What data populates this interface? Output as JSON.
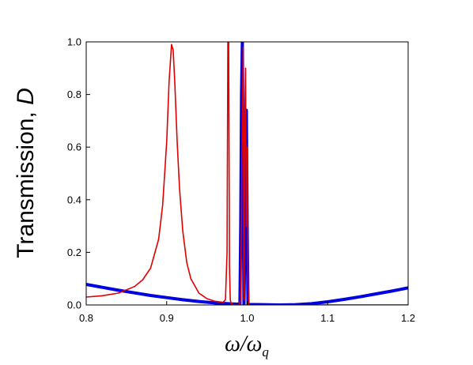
{
  "chart_data": {
    "type": "line",
    "xlabel": "ω/ω",
    "xlabel_subscript": "q",
    "ylabel": "Transmission, ",
    "ylabel_italic": "D",
    "xlim": [
      0.8,
      1.2
    ],
    "ylim": [
      0.0,
      1.0
    ],
    "xticks": [
      "0.8",
      "0.9",
      "1.0",
      "1.1",
      "1.2"
    ],
    "yticks": [
      "0.0",
      "0.2",
      "0.4",
      "0.6",
      "0.8",
      "1.0"
    ],
    "grid": false,
    "series": [
      {
        "color": "#0000e0",
        "stroke": "thick",
        "x": [
          0.8,
          0.82,
          0.84,
          0.86,
          0.88,
          0.9,
          0.92,
          0.94,
          0.96,
          0.98,
          0.99,
          0.991,
          0.992,
          0.993,
          0.994,
          0.995,
          0.996,
          0.997,
          0.998,
          0.999,
          1.0,
          1.001,
          1.002,
          1.02,
          1.04,
          1.06,
          1.08,
          1.1,
          1.12,
          1.14,
          1.16,
          1.18,
          1.2
        ],
        "y": [
          0.078,
          0.067,
          0.056,
          0.046,
          0.036,
          0.028,
          0.02,
          0.013,
          0.008,
          0.004,
          0.003,
          0.003,
          0.3,
          0.8,
          1.0,
          0.5,
          0.003,
          0.2,
          0.62,
          0.74,
          0.3,
          0.002,
          0.002,
          0.001,
          0.0,
          0.001,
          0.005,
          0.012,
          0.021,
          0.031,
          0.042,
          0.053,
          0.065
        ]
      },
      {
        "color": "#e00000",
        "stroke": "thin",
        "x": [
          0.8,
          0.82,
          0.84,
          0.86,
          0.87,
          0.88,
          0.89,
          0.895,
          0.9,
          0.903,
          0.906,
          0.908,
          0.91,
          0.913,
          0.916,
          0.92,
          0.925,
          0.93,
          0.94,
          0.95,
          0.96,
          0.97,
          0.973,
          0.975,
          0.976,
          0.977,
          0.978,
          0.979,
          0.98,
          0.982,
          0.985,
          0.99,
          0.992,
          0.994,
          0.995,
          0.996,
          0.997,
          0.998,
          0.999,
          1.0,
          1.001,
          1.002,
          1.01,
          1.05,
          1.1,
          1.15,
          1.2
        ],
        "y": [
          0.03,
          0.035,
          0.045,
          0.07,
          0.095,
          0.14,
          0.25,
          0.38,
          0.62,
          0.85,
          0.99,
          0.97,
          0.85,
          0.62,
          0.44,
          0.28,
          0.16,
          0.1,
          0.045,
          0.024,
          0.014,
          0.01,
          0.02,
          0.2,
          1.0,
          1.0,
          0.15,
          0.02,
          0.005,
          0.002,
          0.001,
          0.001,
          0.02,
          0.7,
          0.98,
          0.02,
          0.7,
          0.9,
          0.3,
          0.6,
          0.1,
          0.0,
          0.0,
          0.0,
          0.0,
          0.0,
          0.0
        ]
      }
    ]
  }
}
